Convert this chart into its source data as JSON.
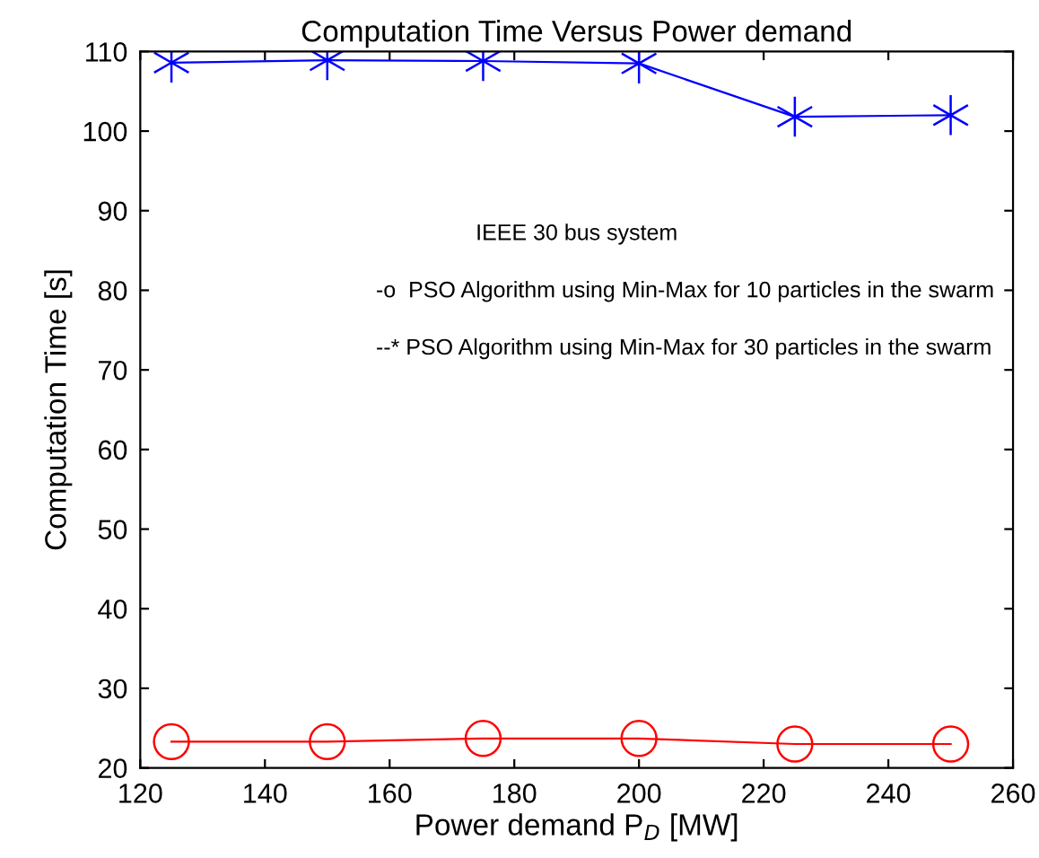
{
  "chart_data": {
    "type": "line",
    "title": "Computation Time Versus Power demand",
    "xlabel": "Power demand P$_{D}$ [MW]",
    "ylabel": "Computation Time [s]",
    "x": [
      125,
      150,
      175,
      200,
      225,
      250
    ],
    "series": [
      {
        "color": "#ff0000",
        "marker": "circle",
        "line_style": "solid",
        "values": [
          23.3,
          23.3,
          23.7,
          23.7,
          23.0,
          23.0
        ]
      },
      {
        "color": "#0000ff",
        "marker": "cross",
        "line_style": "solid",
        "values": [
          108.6,
          108.9,
          108.8,
          108.5,
          101.8,
          102.0
        ]
      }
    ],
    "annotations": [
      "IEEE 30 bus system",
      "-o  PSO Algorithm using Min-Max for 10 particles in the swarm",
      "--* PSO Algorithm using Min-Max for 30 particles in the swarm"
    ],
    "xlim": [
      120,
      260
    ],
    "xticks": [
      120,
      140,
      160,
      180,
      200,
      220,
      240,
      260
    ],
    "ylim": [
      20,
      110
    ],
    "yticks": [
      20,
      30,
      40,
      50,
      60,
      70,
      80,
      90,
      100,
      110
    ],
    "grid": false,
    "legend": false
  }
}
